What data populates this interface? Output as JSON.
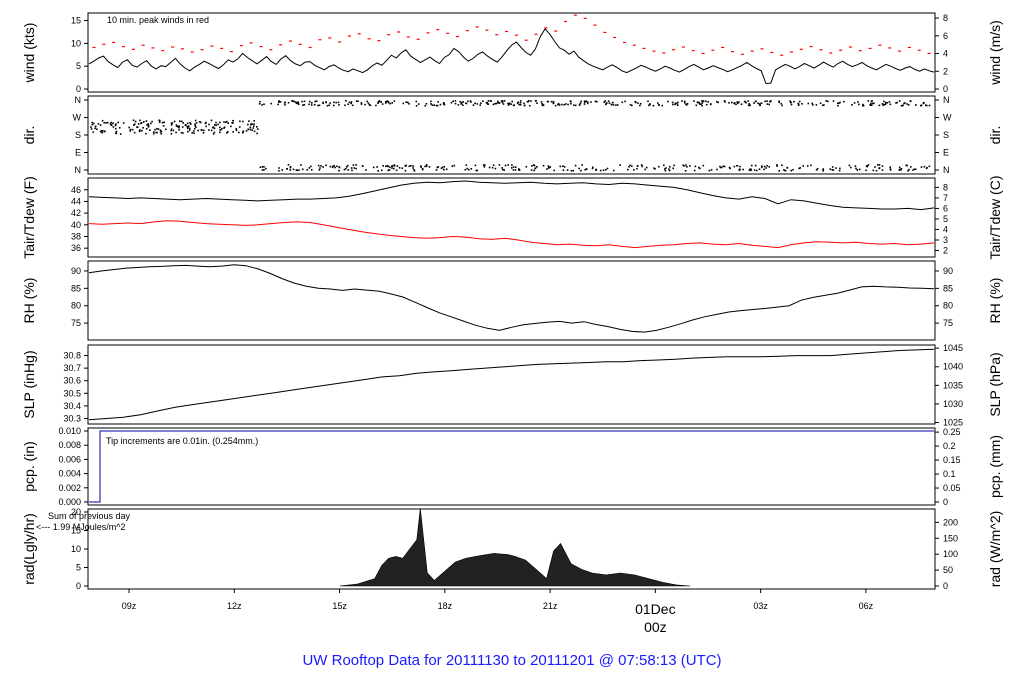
{
  "colors": {
    "series": "#000000",
    "peak": "#ff0000",
    "dew": "#ff0000",
    "note": "#0000aa",
    "rad_note": "#9900cc",
    "date": "#dd0000",
    "footer": "#1a1aff",
    "fill": "#222222"
  },
  "chart_data": [
    {
      "type": "line",
      "id": "wind",
      "ylabel_left": "wind (kts)",
      "ylabel_right": "wind (m/s)",
      "ylim": [
        0,
        16
      ],
      "yticks_left": [
        "0",
        "5",
        "10",
        "15"
      ],
      "ylim_right": [
        0,
        8.23
      ],
      "yticks_right": [
        "0",
        "2",
        "4",
        "6",
        "8"
      ],
      "annotation": "10 min. peak winds in red",
      "series": [
        {
          "values": [
            5.5,
            6.1,
            6.8,
            7.2,
            6.0,
            5.3,
            4.7,
            5.9,
            6.4,
            5.2,
            4.8,
            5.6,
            6.2,
            5.0,
            4.4,
            5.1,
            4.9,
            5.8,
            6.7,
            5.5,
            4.6,
            4.0,
            4.8,
            5.4,
            6.1,
            5.6,
            5.0,
            4.5,
            5.3,
            6.4,
            5.9,
            6.6,
            7.8,
            6.9,
            6.2,
            5.5,
            6.3,
            7.1,
            6.0,
            5.4,
            6.6,
            7.3,
            6.2,
            5.5,
            5.1,
            5.9,
            6.0,
            5.2,
            4.7,
            4.2,
            4.9,
            5.3,
            4.6,
            4.1,
            3.8,
            4.4,
            4.0,
            3.6,
            4.2,
            5.1,
            5.7,
            5.2,
            6.3,
            7.4,
            6.8,
            7.9,
            8.6,
            7.2,
            6.5,
            5.8,
            6.4,
            7.0,
            6.2,
            5.6,
            6.9,
            7.5,
            8.9,
            8.2,
            7.0,
            6.1,
            6.7,
            7.6,
            8.1,
            7.2,
            6.5,
            5.9,
            7.0,
            8.4,
            9.6,
            10.3,
            9.1,
            8.0,
            7.4,
            8.8,
            11.5,
            13.2,
            12.0,
            10.4,
            9.0,
            8.5,
            7.6,
            8.3,
            7.0,
            6.2,
            5.5,
            5.0,
            4.6,
            4.2,
            4.8,
            5.3,
            4.7,
            4.0,
            3.6,
            4.1,
            4.6,
            5.2,
            4.8,
            4.3,
            3.9,
            4.4,
            5.0,
            4.6,
            4.1,
            3.7,
            4.3,
            4.9,
            5.4,
            4.8,
            4.2,
            4.6,
            5.1,
            4.7,
            4.3,
            3.8,
            4.2,
            4.7,
            5.2,
            5.8,
            5.1,
            4.5,
            4.0,
            1.2,
            1.3,
            4.2,
            4.8,
            5.4,
            5.0,
            4.4,
            4.9,
            5.6,
            5.1,
            4.6,
            5.2,
            5.9,
            5.3,
            4.8,
            5.6,
            6.1,
            5.4,
            4.9,
            5.3,
            5.8,
            5.1,
            4.6,
            4.2,
            4.8,
            5.4,
            5.0,
            4.5,
            4.1,
            4.6,
            4.9,
            4.3,
            3.9,
            4.4,
            4.0,
            3.7
          ]
        }
      ],
      "peaks": [
        9.1,
        9.8,
        10.2,
        9.3,
        8.7,
        9.6,
        9.0,
        8.4,
        9.2,
        8.8,
        8.1,
        8.6,
        9.4,
        8.9,
        8.2,
        9.5,
        10.1,
        9.3,
        8.6,
        9.7,
        10.5,
        9.8,
        9.1,
        10.8,
        11.2,
        10.3,
        11.6,
        12.1,
        11.0,
        10.6,
        11.9,
        12.5,
        11.4,
        10.9,
        12.3,
        13.0,
        12.2,
        11.5,
        12.8,
        13.6,
        12.9,
        11.9,
        12.6,
        11.8,
        10.7,
        12.0,
        13.4,
        12.7,
        14.8,
        16.2,
        15.5,
        14.0,
        12.4,
        11.3,
        10.2,
        9.6,
        8.9,
        8.3,
        7.9,
        8.6,
        9.2,
        8.4,
        7.8,
        8.5,
        9.1,
        8.2,
        7.6,
        8.3,
        8.8,
        8.0,
        7.4,
        8.1,
        8.7,
        9.3,
        8.6,
        7.9,
        8.5,
        9.2,
        8.4,
        8.9,
        9.6,
        9.0,
        8.3,
        9.1,
        8.5,
        7.8
      ]
    },
    {
      "type": "scatter",
      "id": "dir",
      "ylabel_left": "dir.",
      "ylabel_right": "dir.",
      "yticks_left": [
        "N",
        "W",
        "S",
        "E",
        "N"
      ],
      "yticks_right": [
        "N",
        "W",
        "S",
        "E",
        "N"
      ]
    },
    {
      "type": "line",
      "id": "temp",
      "ylabel_left": "Tair/Tdew (F)",
      "ylabel_right": "Tair/Tdew (C)",
      "ylim": [
        35,
        47.5
      ],
      "yticks_left": [
        "36",
        "38",
        "40",
        "42",
        "44",
        "46"
      ],
      "yticks_right": [
        "2",
        "3",
        "4",
        "5",
        "6",
        "7",
        "8"
      ],
      "series": [
        {
          "values": [
            44.8,
            44.7,
            44.6,
            44.5,
            44.6,
            44.5,
            44.4,
            44.3,
            44.4,
            44.5,
            44.4,
            44.3,
            44.2,
            44.1,
            44.2,
            44.3,
            44.4,
            44.4,
            44.5,
            44.6,
            44.9,
            45.3,
            45.8,
            46.3,
            46.8,
            47.1,
            47.3,
            47.2,
            47.4,
            47.5,
            47.3,
            47.2,
            47.1,
            47.2,
            47.3,
            47.1,
            47.0,
            47.1,
            47.2,
            47.0,
            46.9,
            47.1,
            47.0,
            46.8,
            46.6,
            46.4,
            46.0,
            45.5,
            45.0,
            44.6,
            44.4,
            44.8,
            44.5,
            43.6,
            44.3,
            44.1,
            43.7,
            43.3,
            43.0,
            42.9,
            42.8,
            42.7,
            42.7,
            42.8,
            42.6,
            42.9
          ]
        },
        {
          "values": [
            40.2,
            40.1,
            40.2,
            40.3,
            40.2,
            40.5,
            40.7,
            40.6,
            40.4,
            40.2,
            40.1,
            40.0,
            39.9,
            40.0,
            40.2,
            40.4,
            40.5,
            40.4,
            40.0,
            39.6,
            39.2,
            38.8,
            38.5,
            38.2,
            38.0,
            37.8,
            37.7,
            37.8,
            38.0,
            37.9,
            37.6,
            37.5,
            37.7,
            37.4,
            37.0,
            36.8,
            36.6,
            36.7,
            36.5,
            36.4,
            36.6,
            36.3,
            36.1,
            36.3,
            36.5,
            36.6,
            36.8,
            36.9,
            36.7,
            36.6,
            36.8,
            36.5,
            36.3,
            36.1,
            36.6,
            36.9,
            37.1,
            37.0,
            36.9,
            37.0,
            36.8,
            36.7,
            36.8,
            36.6,
            36.7,
            36.9
          ]
        }
      ]
    },
    {
      "type": "line",
      "id": "rh",
      "ylabel_left": "RH (%)",
      "ylabel_right": "RH (%)",
      "ylim": [
        71,
        92
      ],
      "yticks_left": [
        "75",
        "80",
        "85",
        "90"
      ],
      "yticks_right": [
        "75",
        "80",
        "85",
        "90"
      ],
      "series": [
        {
          "values": [
            89.5,
            90.0,
            90.4,
            90.8,
            91.0,
            91.2,
            91.3,
            91.5,
            91.6,
            91.4,
            91.2,
            91.4,
            91.8,
            91.5,
            90.6,
            89.3,
            87.8,
            86.5,
            85.6,
            85.0,
            84.8,
            84.4,
            84.8,
            84.5,
            84.2,
            83.4,
            82.5,
            81.0,
            79.5,
            78.0,
            76.8,
            75.6,
            74.4,
            73.5,
            72.9,
            73.8,
            74.5,
            74.9,
            75.3,
            75.5,
            75.0,
            75.4,
            74.6,
            74.0,
            73.2,
            72.6,
            72.4,
            72.9,
            73.8,
            74.8,
            75.9,
            76.8,
            77.5,
            78.2,
            78.6,
            78.9,
            79.2,
            79.6,
            80.0,
            81.6,
            82.4,
            83.0,
            83.6,
            84.5,
            85.4,
            85.6,
            85.4,
            85.3,
            85.1,
            85.0,
            84.9
          ]
        }
      ]
    },
    {
      "type": "line",
      "id": "slp",
      "ylabel_left": "SLP (inHg)",
      "ylabel_right": "SLP (hPa)",
      "ylim": [
        30.28,
        30.86
      ],
      "yticks_left": [
        "30.3",
        "30.4",
        "30.5",
        "30.6",
        "30.7",
        "30.8"
      ],
      "yticks_right": [
        "1025",
        "1030",
        "1035",
        "1040",
        "1045"
      ],
      "series": [
        {
          "values": [
            30.29,
            30.3,
            30.31,
            30.33,
            30.36,
            30.39,
            30.41,
            30.43,
            30.45,
            30.47,
            30.49,
            30.51,
            30.53,
            30.55,
            30.57,
            30.59,
            30.61,
            30.63,
            30.64,
            30.66,
            30.67,
            30.68,
            30.69,
            30.7,
            30.71,
            30.72,
            30.73,
            30.735,
            30.74,
            30.745,
            30.75,
            30.75,
            30.76,
            30.765,
            30.77,
            30.78,
            30.785,
            30.79,
            30.79,
            30.79,
            30.795,
            30.8,
            30.8,
            30.8,
            30.81,
            30.82,
            30.83,
            30.84,
            30.845,
            30.85
          ]
        }
      ]
    },
    {
      "type": "line",
      "id": "pcp",
      "ylabel_left": "pcp. (in)",
      "ylabel_right": "pcp. (mm)",
      "ylim": [
        0,
        0.01
      ],
      "yticks_left": [
        "0.000",
        "0.002",
        "0.004",
        "0.006",
        "0.008",
        "0.010"
      ],
      "yticks_right": [
        "0",
        "0.05",
        "0.1",
        "0.15",
        "0.2",
        "0.25"
      ],
      "annotation": "Tip increments are 0.01in. (0.254mm.)"
    },
    {
      "type": "area",
      "id": "rad",
      "ylabel_left": "rad(Lgly/hr)",
      "ylabel_right": "rad (W/m^2)",
      "ylim": [
        0,
        20
      ],
      "yticks_left": [
        "0",
        "5",
        "10",
        "15",
        "20"
      ],
      "yticks_right": [
        "0",
        "50",
        "100",
        "150",
        "200"
      ],
      "annotation_1": "Sum of previous day",
      "annotation_2": "<--- 1.99 MJoules/m^2",
      "x_hours": [
        15.0,
        15.5,
        16.0,
        16.2,
        16.4,
        16.6,
        16.8,
        17.0,
        17.2,
        17.3,
        17.5,
        17.7,
        18.0,
        18.3,
        18.6,
        19.0,
        19.4,
        19.8,
        20.0,
        20.3,
        20.6,
        20.9,
        21.1,
        21.3,
        21.6,
        21.9,
        22.2,
        22.6,
        23.0,
        23.4,
        23.8,
        24.2,
        24.6,
        25.0
      ],
      "values": [
        0,
        0.5,
        2.0,
        5.5,
        7.5,
        8.0,
        7.5,
        10.0,
        12.5,
        21.0,
        3.5,
        1.5,
        4.0,
        6.5,
        7.5,
        8.2,
        8.8,
        8.5,
        8.0,
        7.0,
        4.5,
        2.0,
        9.5,
        11.5,
        6.0,
        4.5,
        3.5,
        3.0,
        3.5,
        3.0,
        2.0,
        1.0,
        0.3,
        0
      ],
      "xticks": [
        "09z",
        "12z",
        "15z",
        "18z",
        "21z",
        "00z",
        "03z",
        "06z"
      ],
      "date_label": "01Dec",
      "date_sub": "00z"
    }
  ],
  "footer": "UW Rooftop Data for 20111130  to  20111201 @ 07:58:13  (UTC)"
}
